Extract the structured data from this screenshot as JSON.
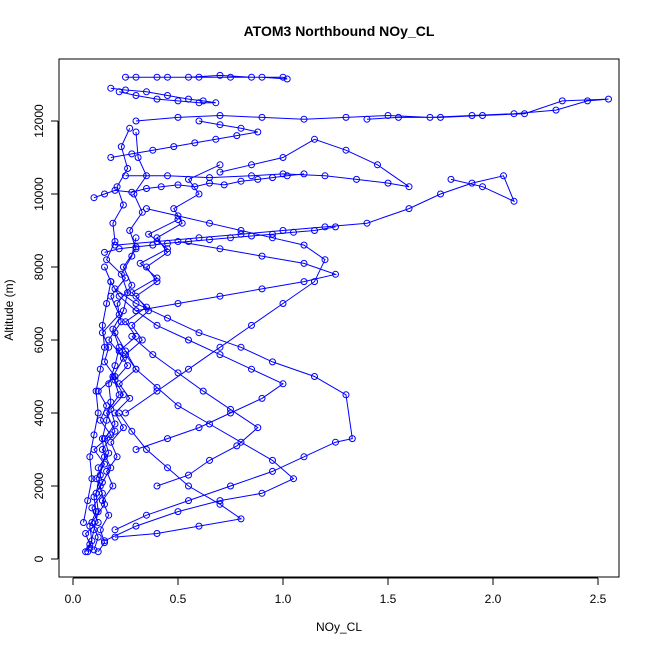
{
  "chart_data": {
    "type": "line",
    "title": "ATOM3 Northbound NOy_CL",
    "xlabel": "NOy_CL",
    "ylabel": "Altitude (m)",
    "xlim": [
      0,
      2.6
    ],
    "ylim": [
      0,
      13500
    ],
    "x_ticks": [
      0.0,
      0.5,
      1.0,
      1.5,
      2.0,
      2.5
    ],
    "x_tick_labels": [
      "0.0",
      "0.5",
      "1.0",
      "1.5",
      "2.0",
      "2.5"
    ],
    "y_ticks": [
      0,
      2000,
      4000,
      6000,
      8000,
      10000,
      12000
    ],
    "y_tick_labels": [
      "0",
      "2000",
      "4000",
      "6000",
      "8000",
      "10000",
      "12000"
    ],
    "grid": false,
    "legend": "none",
    "marker": "open-circle",
    "color": "#0000ff",
    "series": [
      {
        "x": [
          0.07,
          0.08,
          0.06,
          0.12,
          0.09,
          0.14,
          0.11,
          0.15,
          0.1,
          0.18,
          0.13,
          0.16,
          0.12,
          0.2,
          0.15,
          0.17,
          0.14,
          0.22,
          0.18,
          0.25,
          0.16,
          0.2,
          0.19,
          0.24,
          0.21,
          0.26,
          0.23,
          0.27
        ],
        "y": [
          200,
          400,
          700,
          1000,
          1400,
          1800,
          2200,
          2600,
          3000,
          3400,
          3800,
          4200,
          4600,
          5000,
          5400,
          5800,
          6200,
          6700,
          7200,
          7700,
          8200,
          8700,
          9200,
          9700,
          10200,
          10700,
          11300,
          11800
        ]
      },
      {
        "x": [
          0.1,
          0.12,
          0.09,
          0.15,
          0.13,
          0.18,
          0.14,
          0.2,
          0.16,
          0.22,
          0.19,
          0.24,
          0.17,
          0.23,
          0.21,
          0.28,
          0.24,
          0.3,
          0.27,
          0.33,
          0.29,
          0.35,
          0.31,
          0.3
        ],
        "y": [
          250,
          600,
          1000,
          1500,
          2000,
          2500,
          3000,
          3500,
          4000,
          4500,
          5000,
          5500,
          6000,
          6500,
          7000,
          7500,
          8000,
          8500,
          9000,
          9500,
          10000,
          10500,
          11000,
          11700
        ]
      },
      {
        "x": [
          0.06,
          0.09,
          0.08,
          0.11,
          0.1,
          0.14,
          0.12,
          0.17,
          0.15,
          0.2,
          0.18,
          0.24,
          0.2,
          0.26,
          0.22,
          0.3,
          0.25,
          0.35,
          0.28,
          0.4,
          0.32,
          0.45,
          0.36,
          0.5
        ],
        "y": [
          200,
          500,
          900,
          1300,
          1700,
          2100,
          2500,
          2900,
          3300,
          3700,
          4100,
          4500,
          4900,
          5300,
          5700,
          6100,
          6500,
          6900,
          7300,
          7700,
          8100,
          8500,
          8900,
          9300
        ]
      },
      {
        "x": [
          0.12,
          0.15,
          0.13,
          0.17,
          0.14,
          0.19,
          0.16,
          0.21,
          0.18,
          0.24,
          0.2,
          0.27,
          0.22,
          0.3,
          0.25,
          0.33,
          0.28,
          0.36,
          0.3,
          0.4,
          0.35,
          0.45,
          0.4,
          0.52,
          0.48,
          0.6,
          0.55,
          0.7
        ],
        "y": [
          200,
          450,
          800,
          1200,
          1600,
          2000,
          2400,
          2800,
          3200,
          3600,
          4000,
          4400,
          4800,
          5200,
          5600,
          6000,
          6400,
          6800,
          7200,
          7600,
          8000,
          8400,
          8800,
          9200,
          9600,
          10000,
          10400,
          10800
        ]
      },
      {
        "x": [
          0.3,
          0.45,
          0.6,
          0.75,
          0.9,
          1.0,
          0.85,
          0.7,
          0.55,
          0.4,
          0.3,
          0.22,
          0.18,
          0.15
        ],
        "y": [
          3000,
          3300,
          3600,
          4000,
          4400,
          4800,
          5200,
          5600,
          6000,
          6400,
          6800,
          7200,
          7600,
          8000
        ]
      },
      {
        "x": [
          0.2,
          0.35,
          0.55,
          0.75,
          0.95,
          1.1,
          1.25,
          1.33,
          1.3,
          1.15,
          0.95,
          0.8,
          0.6,
          0.45,
          0.3,
          0.2
        ],
        "y": [
          800,
          1200,
          1600,
          2000,
          2400,
          2800,
          3200,
          3300,
          4500,
          5000,
          5400,
          5800,
          6200,
          6600,
          7000,
          7400
        ]
      },
      {
        "x": [
          0.15,
          0.3,
          0.5,
          0.7,
          0.9,
          1.05,
          0.95,
          0.8,
          0.65,
          0.5,
          0.4,
          0.3,
          0.25,
          0.2
        ],
        "y": [
          500,
          900,
          1300,
          1600,
          1800,
          2200,
          2700,
          3200,
          3700,
          4200,
          4700,
          5200,
          5700,
          6200
        ]
      },
      {
        "x": [
          0.25,
          0.4,
          0.55,
          0.7,
          0.85,
          1.0,
          1.15,
          1.2,
          1.1,
          0.95,
          0.8,
          0.65,
          0.5,
          0.35
        ],
        "y": [
          4000,
          4600,
          5200,
          5800,
          6400,
          7000,
          7600,
          8200,
          8600,
          8800,
          9000,
          9200,
          9400,
          9600
        ]
      },
      {
        "x": [
          0.2,
          0.4,
          0.6,
          0.8,
          1.0,
          1.2,
          1.4,
          1.6,
          1.75,
          1.9,
          2.05,
          2.1,
          1.95,
          1.8
        ],
        "y": [
          8600,
          8700,
          8800,
          8900,
          9000,
          9100,
          9200,
          9600,
          10000,
          10300,
          10500,
          9800,
          10200,
          10400
        ]
      },
      {
        "x": [
          0.3,
          0.5,
          0.7,
          0.9,
          1.1,
          1.3,
          1.5,
          1.7,
          1.9,
          2.1,
          2.3,
          2.45,
          2.55,
          2.33,
          2.15,
          1.95,
          1.75,
          1.55,
          1.4
        ],
        "y": [
          12000,
          12100,
          12150,
          12100,
          12050,
          12100,
          12150,
          12100,
          12150,
          12200,
          12300,
          12550,
          12600,
          12550,
          12200,
          12150,
          12100,
          12100,
          12050
        ]
      },
      {
        "x": [
          0.25,
          0.45,
          0.65,
          0.85,
          1.0,
          1.2,
          1.35,
          1.5,
          1.6,
          1.45,
          1.3,
          1.15,
          1.0,
          0.85,
          0.7
        ],
        "y": [
          10500,
          10500,
          10450,
          10500,
          10550,
          10500,
          10400,
          10300,
          10200,
          10800,
          11200,
          11500,
          11000,
          10800,
          10600
        ]
      },
      {
        "x": [
          0.25,
          0.4,
          0.55,
          0.7,
          0.85,
          1.0,
          1.02,
          0.9,
          0.75,
          0.6,
          0.45,
          0.3
        ],
        "y": [
          13200,
          13200,
          13200,
          13250,
          13200,
          13200,
          13150,
          13200,
          13200,
          13200,
          13200,
          13200
        ]
      },
      {
        "x": [
          0.18,
          0.25,
          0.35,
          0.45,
          0.55,
          0.62,
          0.68,
          0.6,
          0.5,
          0.4,
          0.3,
          0.22
        ],
        "y": [
          12900,
          12850,
          12800,
          12700,
          12600,
          12550,
          12500,
          12500,
          12550,
          12600,
          12700,
          12800
        ]
      },
      {
        "x": [
          0.1,
          0.15,
          0.2,
          0.28,
          0.35,
          0.42,
          0.5,
          0.58,
          0.65,
          0.72,
          0.8,
          0.88,
          0.95,
          1.02,
          1.1
        ],
        "y": [
          9900,
          10000,
          10100,
          10050,
          10150,
          10200,
          10250,
          10200,
          10300,
          10250,
          10350,
          10400,
          10450,
          10500,
          10550
        ]
      },
      {
        "x": [
          0.15,
          0.22,
          0.3,
          0.38,
          0.45,
          0.55,
          0.65,
          0.75,
          0.85,
          0.95,
          1.05,
          1.15,
          1.25
        ],
        "y": [
          8400,
          8500,
          8550,
          8600,
          8650,
          8700,
          8750,
          8800,
          8850,
          8900,
          8950,
          9000,
          9100
        ]
      },
      {
        "x": [
          0.08,
          0.1,
          0.12,
          0.11,
          0.13,
          0.15,
          0.14,
          0.16,
          0.18,
          0.17,
          0.2,
          0.22,
          0.19,
          0.24,
          0.26,
          0.23,
          0.28,
          0.3
        ],
        "y": [
          300,
          800,
          1300,
          1800,
          2300,
          2800,
          3300,
          3800,
          4300,
          4800,
          5300,
          5800,
          6300,
          6800,
          7300,
          7800,
          8300,
          8800
        ]
      },
      {
        "x": [
          0.05,
          0.07,
          0.09,
          0.08,
          0.1,
          0.12,
          0.11,
          0.13,
          0.15,
          0.14,
          0.16,
          0.18
        ],
        "y": [
          1000,
          1600,
          2200,
          2800,
          3400,
          4000,
          4600,
          5200,
          5800,
          6400,
          7000,
          7600
        ]
      },
      {
        "x": [
          0.2,
          0.4,
          0.6,
          0.8,
          0.7,
          0.55,
          0.45,
          0.35,
          0.28,
          0.22
        ],
        "y": [
          600,
          700,
          900,
          1100,
          1500,
          2000,
          2500,
          3000,
          3500,
          4000
        ]
      },
      {
        "x": [
          0.4,
          0.55,
          0.65,
          0.78,
          0.88,
          0.75,
          0.62,
          0.5,
          0.38,
          0.28
        ],
        "y": [
          2000,
          2300,
          2700,
          3100,
          3600,
          4100,
          4600,
          5100,
          5600,
          6100
        ]
      },
      {
        "x": [
          0.3,
          0.5,
          0.7,
          0.9,
          1.1,
          1.25,
          1.1,
          0.9,
          0.7,
          0.5
        ],
        "y": [
          6800,
          7000,
          7200,
          7400,
          7600,
          7800,
          8100,
          8300,
          8500,
          8700
        ]
      },
      {
        "x": [
          0.18,
          0.28,
          0.38,
          0.48,
          0.58,
          0.68,
          0.78,
          0.88,
          0.8,
          0.7,
          0.6
        ],
        "y": [
          11000,
          11100,
          11200,
          11300,
          11400,
          11500,
          11600,
          11700,
          11800,
          11900,
          12000
        ]
      }
    ]
  }
}
